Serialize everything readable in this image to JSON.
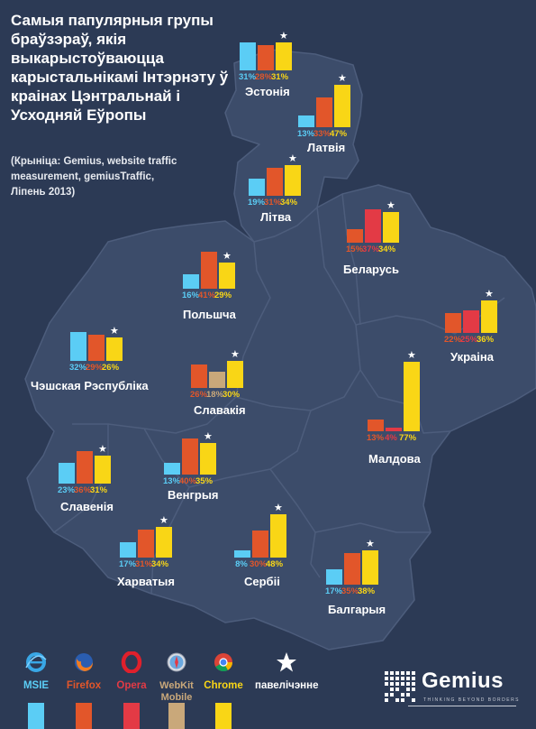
{
  "title": "Самыя папулярныя групы браўзэраў, якія выкарыстоўваюцца карыстальнікамі Інтэрнэту ў краінах Цэнтральнай і Усходняй Еўропы",
  "source": "(Крыніца: Gemius, website traffic measurement, gemiusTraffic, Ліпень 2013)",
  "colors": {
    "background": "#2c3a55",
    "map": "#3c4c6a",
    "msie": "#5bcdf5",
    "firefox": "#e2562a",
    "opera": "#e33a45",
    "webkit": "#c9a87a",
    "chrome": "#f9d616"
  },
  "chart_data": {
    "type": "bar",
    "value_unit": "%",
    "browsers": [
      "MSIE",
      "Firefox",
      "Opera",
      "WebKit Mobile",
      "Chrome"
    ],
    "countries": [
      {
        "name": "Эстонія",
        "bars": [
          {
            "browser": "MSIE",
            "value": 31,
            "label": "31%"
          },
          {
            "browser": "Firefox",
            "value": 28,
            "label": "28%"
          },
          {
            "browser": "Chrome",
            "value": 31,
            "label": "31%"
          }
        ],
        "rising": "Chrome"
      },
      {
        "name": "Латвія",
        "bars": [
          {
            "browser": "MSIE",
            "value": 13,
            "label": "13%"
          },
          {
            "browser": "Firefox",
            "value": 33,
            "label": "33%"
          },
          {
            "browser": "Chrome",
            "value": 47,
            "label": "47%"
          }
        ],
        "rising": "Chrome"
      },
      {
        "name": "Літва",
        "bars": [
          {
            "browser": "MSIE",
            "value": 19,
            "label": "19%"
          },
          {
            "browser": "Firefox",
            "value": 31,
            "label": "31%"
          },
          {
            "browser": "Chrome",
            "value": 34,
            "label": "34%"
          }
        ],
        "rising": "Chrome"
      },
      {
        "name": "Беларусь",
        "bars": [
          {
            "browser": "Firefox",
            "value": 15,
            "label": "15%"
          },
          {
            "browser": "Opera",
            "value": 37,
            "label": "37%"
          },
          {
            "browser": "Chrome",
            "value": 34,
            "label": "34%"
          }
        ],
        "rising": "Chrome"
      },
      {
        "name": "Польшча",
        "bars": [
          {
            "browser": "MSIE",
            "value": 16,
            "label": "16%"
          },
          {
            "browser": "Firefox",
            "value": 41,
            "label": "41%"
          },
          {
            "browser": "Chrome",
            "value": 29,
            "label": "29%"
          }
        ],
        "rising": "Chrome"
      },
      {
        "name": "Украіна",
        "bars": [
          {
            "browser": "Firefox",
            "value": 22,
            "label": "22%"
          },
          {
            "browser": "Opera",
            "value": 25,
            "label": "25%"
          },
          {
            "browser": "Chrome",
            "value": 36,
            "label": "36%"
          }
        ],
        "rising": "Chrome"
      },
      {
        "name": "Чэшская Рэспубліка",
        "bars": [
          {
            "browser": "MSIE",
            "value": 32,
            "label": "32%"
          },
          {
            "browser": "Firefox",
            "value": 29,
            "label": "29%"
          },
          {
            "browser": "Chrome",
            "value": 26,
            "label": "26%"
          }
        ],
        "rising": "Chrome"
      },
      {
        "name": "Славакія",
        "bars": [
          {
            "browser": "Firefox",
            "value": 26,
            "label": "26%"
          },
          {
            "browser": "WebKit Mobile",
            "value": 18,
            "label": "18%"
          },
          {
            "browser": "Chrome",
            "value": 30,
            "label": "30%"
          }
        ],
        "rising": "Chrome"
      },
      {
        "name": "Малдова",
        "bars": [
          {
            "browser": "Firefox",
            "value": 13,
            "label": "13%"
          },
          {
            "browser": "Opera",
            "value": 4,
            "label": "4%"
          },
          {
            "browser": "Chrome",
            "value": 77,
            "label": "77%"
          }
        ],
        "rising": "Chrome"
      },
      {
        "name": "Венгрыя",
        "bars": [
          {
            "browser": "MSIE",
            "value": 13,
            "label": "13%"
          },
          {
            "browser": "Firefox",
            "value": 40,
            "label": "40%"
          },
          {
            "browser": "Chrome",
            "value": 35,
            "label": "35%"
          }
        ],
        "rising": "Chrome"
      },
      {
        "name": "Славенія",
        "bars": [
          {
            "browser": "MSIE",
            "value": 23,
            "label": "23%"
          },
          {
            "browser": "Firefox",
            "value": 36,
            "label": "36%"
          },
          {
            "browser": "Chrome",
            "value": 31,
            "label": "31%"
          }
        ],
        "rising": "Chrome"
      },
      {
        "name": "Харватыя",
        "bars": [
          {
            "browser": "MSIE",
            "value": 17,
            "label": "17%"
          },
          {
            "browser": "Firefox",
            "value": 31,
            "label": "31%"
          },
          {
            "browser": "Chrome",
            "value": 34,
            "label": "34%"
          }
        ],
        "rising": "Chrome"
      },
      {
        "name": "Сербіі",
        "bars": [
          {
            "browser": "MSIE",
            "value": 8,
            "label": "8%"
          },
          {
            "browser": "Firefox",
            "value": 30,
            "label": "30%"
          },
          {
            "browser": "Chrome",
            "value": 48,
            "label": "48%"
          }
        ],
        "rising": "Chrome"
      },
      {
        "name": "Балгарыя",
        "bars": [
          {
            "browser": "MSIE",
            "value": 17,
            "label": "17%"
          },
          {
            "browser": "Firefox",
            "value": 35,
            "label": "35%"
          },
          {
            "browser": "Chrome",
            "value": 38,
            "label": "38%"
          }
        ],
        "rising": "Chrome"
      }
    ]
  },
  "legend": {
    "items": [
      {
        "key": "MSIE",
        "label": "MSIE",
        "color": "#5bcdf5",
        "icon": "ie-icon"
      },
      {
        "key": "Firefox",
        "label": "Firefox",
        "color": "#e2562a",
        "icon": "firefox-icon"
      },
      {
        "key": "Opera",
        "label": "Opera",
        "color": "#e33a45",
        "icon": "opera-icon"
      },
      {
        "key": "WebKit Mobile",
        "label": "WebKit Mobile",
        "color": "#c9a87a",
        "icon": "webkit-icon"
      },
      {
        "key": "Chrome",
        "label": "Chrome",
        "color": "#f9d616",
        "icon": "chrome-icon"
      }
    ],
    "star_label": "павелічэнне"
  },
  "logo": {
    "name": "Gemius",
    "tagline": "THINKING BEYOND BORDERS"
  }
}
